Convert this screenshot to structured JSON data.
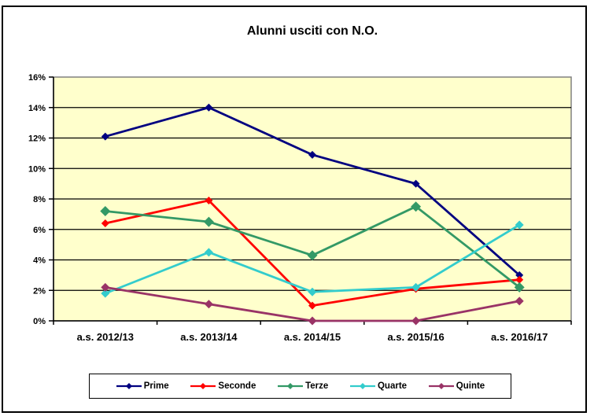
{
  "window": {
    "background_color": "#FFFFFF",
    "border_color": "#000000"
  },
  "chart_data": {
    "type": "line",
    "title": "Alunni usciti con N.O.",
    "categories": [
      "a.s. 2012/13",
      "a.s. 2013/14",
      "a.s. 2014/15",
      "a.s. 2015/16",
      "a.s. 2016/17"
    ],
    "series": [
      {
        "name": "Prime",
        "color": "#000080",
        "marker_size": 5,
        "values": [
          12.1,
          14.0,
          10.9,
          9.0,
          3.0
        ]
      },
      {
        "name": "Seconde",
        "color": "#FF0000",
        "marker_size": 5,
        "values": [
          6.4,
          7.9,
          1.0,
          2.1,
          2.7
        ]
      },
      {
        "name": "Terze",
        "color": "#339966",
        "marker_size": 6.5,
        "values": [
          7.2,
          6.5,
          4.3,
          7.5,
          2.2
        ]
      },
      {
        "name": "Quarte",
        "color": "#33CCCC",
        "marker_size": 5.5,
        "values": [
          1.8,
          4.5,
          1.9,
          2.2,
          6.3
        ]
      },
      {
        "name": "Quinte",
        "color": "#993366",
        "marker_size": 5.5,
        "values": [
          2.2,
          1.1,
          0.0,
          0.0,
          1.3
        ]
      }
    ],
    "ylim": [
      0,
      16
    ],
    "ytick_step": 2,
    "y_tick_labels": [
      "0%",
      "2%",
      "4%",
      "6%",
      "8%",
      "10%",
      "12%",
      "14%",
      "16%"
    ],
    "xlabel": "",
    "ylabel": "",
    "grid": true,
    "gridline_color": "#000000",
    "axis_color": "#000000",
    "plot_bg": "#FFFFCC",
    "plot_border_color": "#808080",
    "legend_position": "bottom"
  }
}
